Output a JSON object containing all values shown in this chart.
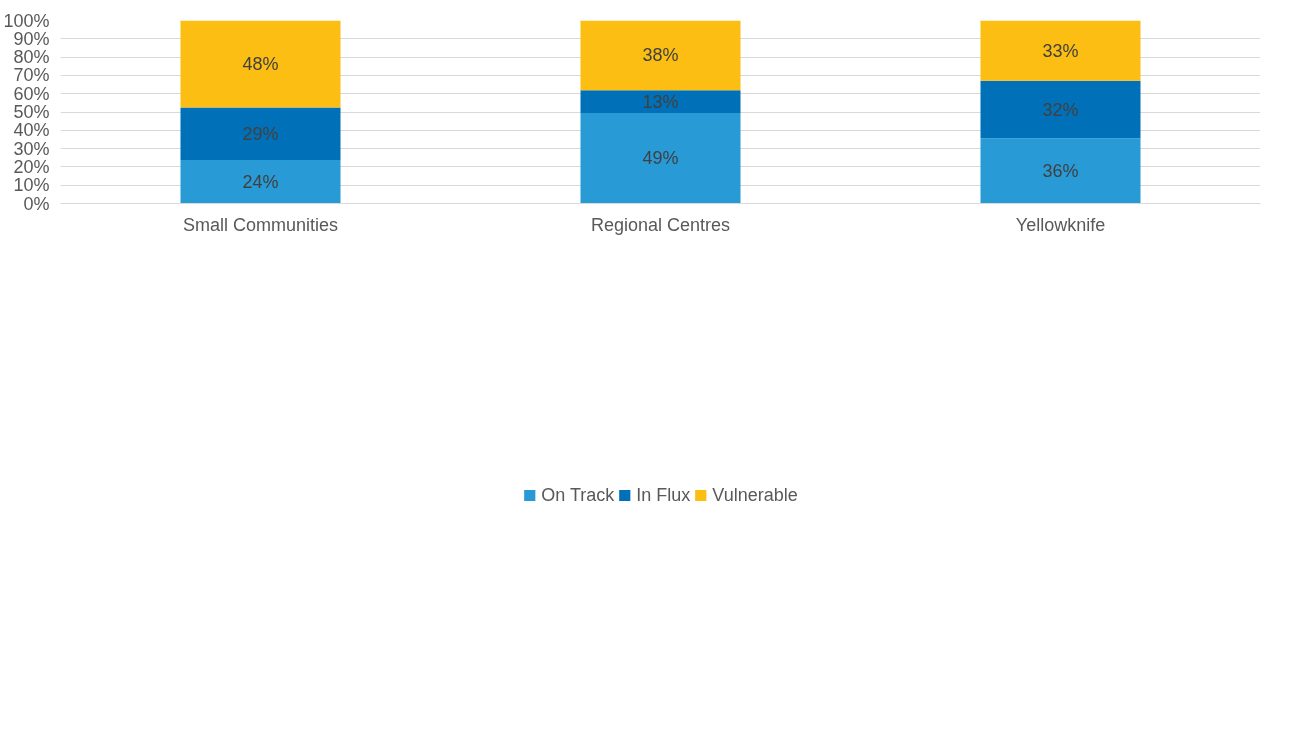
{
  "chart_data": {
    "type": "bar",
    "stacked": true,
    "categories": [
      "Small Communities",
      "Regional Centres",
      "Yellowknife"
    ],
    "series": [
      {
        "name": "On Track",
        "color": "#289ad6",
        "values": [
          23.8,
          49.4,
          35.6
        ],
        "value_labels": [
          "24%",
          "49%",
          "36%"
        ]
      },
      {
        "name": "In Flux",
        "color": "#0071b9",
        "values": [
          28.6,
          12.5,
          31.5
        ],
        "value_labels": [
          "29%",
          "13%",
          "32%"
        ]
      },
      {
        "name": "Vulnerable",
        "color": "#fcbe12",
        "values": [
          47.6,
          38.1,
          32.9
        ],
        "value_labels": [
          "48%",
          "38%",
          "33%"
        ]
      }
    ],
    "ylim": [
      0,
      100
    ],
    "yticks": [
      {
        "value": 0,
        "label": "0%"
      },
      {
        "value": 10,
        "label": "10%"
      },
      {
        "value": 20,
        "label": "20%"
      },
      {
        "value": 30,
        "label": "30%"
      },
      {
        "value": 40,
        "label": "40%"
      },
      {
        "value": 50,
        "label": "50%"
      },
      {
        "value": 60,
        "label": "60%"
      },
      {
        "value": 70,
        "label": "70%"
      },
      {
        "value": 80,
        "label": "80%"
      },
      {
        "value": 90,
        "label": "90%"
      },
      {
        "value": 100,
        "label": "100%"
      }
    ],
    "grid": "y",
    "legend": "bottom"
  }
}
